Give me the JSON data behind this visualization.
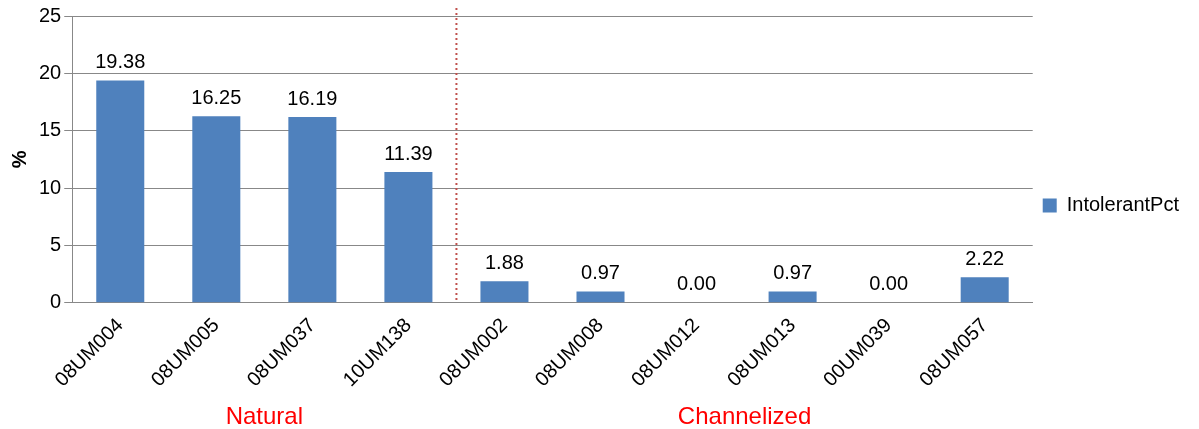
{
  "chart_data": {
    "type": "bar",
    "ylabel": "%",
    "categories": [
      "08UM004",
      "08UM005",
      "08UM037",
      "10UM138",
      "08UM002",
      "08UM008",
      "08UM012",
      "08UM013",
      "00UM039",
      "08UM057"
    ],
    "series": [
      {
        "name": "IntolerantPct",
        "color": "#4f81bd",
        "values": [
          19.38,
          16.25,
          16.19,
          11.39,
          1.88,
          0.97,
          0,
          0.97,
          0,
          2.22
        ],
        "value_labels": [
          "19.38",
          "16.25",
          "16.19",
          "11.39",
          "1.88",
          "0.97",
          "0.00",
          "0.97",
          "0.00",
          "2.22"
        ]
      }
    ],
    "ylim": [
      0,
      25
    ],
    "yticks": [
      0,
      5,
      10,
      15,
      20,
      25
    ],
    "grid": "y",
    "legend": "right",
    "ref_lines": [
      {
        "axis": "x",
        "value": "10UM138",
        "color": "#c0504d",
        "line_style": "dotted"
      }
    ],
    "annotations": [
      "Natural",
      "Channelized"
    ]
  }
}
